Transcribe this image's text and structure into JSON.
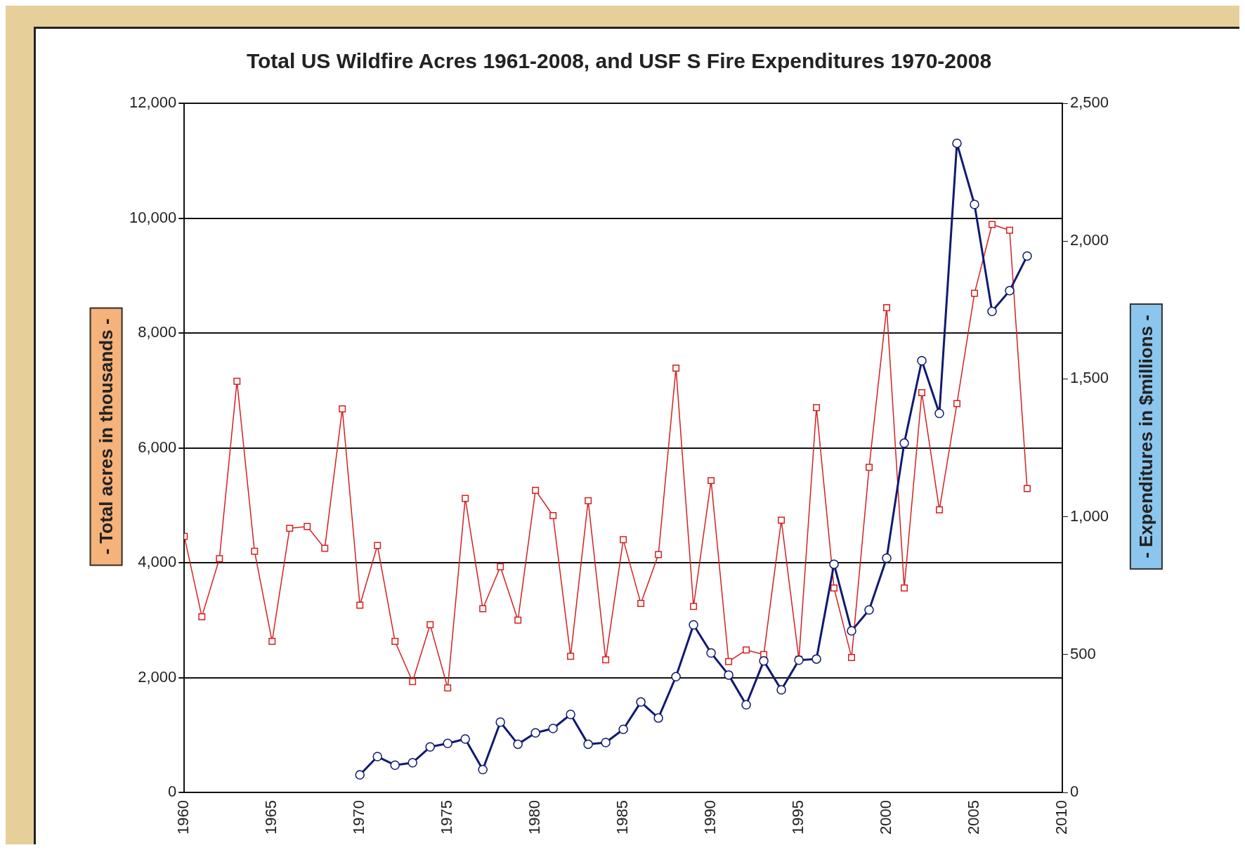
{
  "chart_data": {
    "type": "line",
    "title": "Total US Wildfire Acres 1961-2008, and USF S Fire Expenditures 1970-2008",
    "ylabel": "- Total acres in thousands -",
    "y2label": "- Expenditures in $millions -",
    "xlim": [
      1960,
      2010
    ],
    "xticks": [
      1960,
      1965,
      1970,
      1975,
      1980,
      1985,
      1990,
      1995,
      2000,
      2005,
      2010
    ],
    "ylim": [
      0,
      12000
    ],
    "yticks": [
      0,
      {
        "value": 2000,
        "label": "2,000"
      },
      {
        "value": 4000,
        "label": "4,000"
      },
      {
        "value": 6000,
        "label": "6,000"
      },
      {
        "value": 8000,
        "label": "8,000"
      },
      {
        "value": 10000,
        "label": "10,000"
      },
      {
        "value": 12000,
        "label": "12,000"
      }
    ],
    "y2lim": [
      0,
      2500
    ],
    "y2ticks": [
      0,
      500,
      {
        "value": 1000,
        "label": "1,000"
      },
      {
        "value": 1500,
        "label": "1,500"
      },
      {
        "value": 2000,
        "label": "2,000"
      },
      {
        "value": 2500,
        "label": "2,500"
      }
    ],
    "grid": "y",
    "legend": false,
    "line_style": "solid",
    "series": [
      {
        "color": "#d42020",
        "marker": "square",
        "x": [
          1960,
          1961,
          1962,
          1963,
          1964,
          1965,
          1966,
          1967,
          1968,
          1969,
          1970,
          1971,
          1972,
          1973,
          1974,
          1975,
          1976,
          1977,
          1978,
          1979,
          1980,
          1981,
          1982,
          1983,
          1984,
          1985,
          1986,
          1987,
          1988,
          1989,
          1990,
          1991,
          1992,
          1993,
          1994,
          1995,
          1996,
          1997,
          1998,
          1999,
          2000,
          2001,
          2002,
          2003,
          2004,
          2005,
          2006,
          2007,
          2008
        ],
        "values": [
          4460,
          3060,
          4070,
          7160,
          4200,
          2630,
          4600,
          4630,
          4250,
          6680,
          3260,
          4300,
          2630,
          1930,
          2920,
          1820,
          5120,
          3200,
          3930,
          3000,
          5260,
          4820,
          2370,
          5080,
          2310,
          4400,
          3290,
          4140,
          7390,
          3240,
          5430,
          2280,
          2480,
          2400,
          4740,
          2320,
          6700,
          3560,
          2350,
          5660,
          8440,
          3560,
          6960,
          4920,
          6770,
          8690,
          9890,
          9790,
          5290
        ]
      },
      {
        "color": "#101a70",
        "marker": "circle",
        "axis": "y2",
        "x": [
          1970,
          1971,
          1972,
          1973,
          1974,
          1975,
          1976,
          1977,
          1978,
          1979,
          1980,
          1981,
          1982,
          1983,
          1984,
          1985,
          1986,
          1987,
          1988,
          1989,
          1990,
          1991,
          1992,
          1993,
          1994,
          1995,
          1996,
          1997,
          1998,
          1999,
          2000,
          2001,
          2002,
          2003,
          2004,
          2005,
          2006,
          2007,
          2008
        ],
        "values": [
          64,
          130,
          99,
          108,
          165,
          178,
          194,
          83,
          255,
          175,
          216,
          232,
          283,
          175,
          181,
          229,
          328,
          270,
          420,
          608,
          506,
          426,
          318,
          477,
          372,
          480,
          484,
          828,
          586,
          662,
          850,
          1267,
          1566,
          1375,
          2355,
          2133,
          1745,
          1820,
          1946
        ]
      }
    ]
  }
}
